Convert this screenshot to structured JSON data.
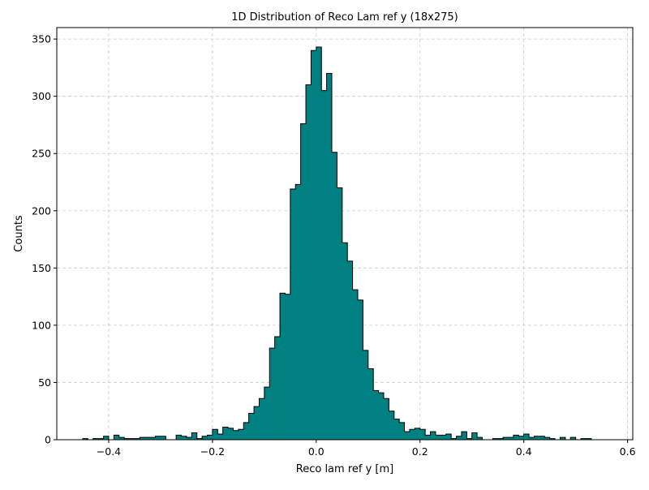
{
  "chart_data": {
    "type": "bar",
    "title": "1D Distribution of Reco Lam ref y (18x275)",
    "xlabel": "Reco lam ref y [m]",
    "ylabel": "Counts",
    "xlim": [
      -0.5,
      0.61
    ],
    "ylim": [
      0,
      360
    ],
    "xticks": [
      -0.4,
      -0.2,
      0.0,
      0.2,
      0.4,
      0.6
    ],
    "xtick_labels": [
      "−0.4",
      "−0.2",
      "0.0",
      "0.2",
      "0.4",
      "0.6"
    ],
    "yticks": [
      0,
      50,
      100,
      150,
      200,
      250,
      300,
      350
    ],
    "ytick_labels": [
      "0",
      "50",
      "100",
      "150",
      "200",
      "250",
      "300",
      "350"
    ],
    "grid": true,
    "colors": {
      "fill": "#008080",
      "edge": "#000000",
      "grid": "#cccccc"
    },
    "bin_start": -0.45,
    "bin_width": 0.01,
    "counts": [
      1,
      0,
      1,
      1,
      3,
      0,
      4,
      2,
      1,
      1,
      1,
      2,
      2,
      2,
      3,
      3,
      0,
      0,
      4,
      3,
      2,
      6,
      1,
      3,
      4,
      9,
      5,
      11,
      10,
      8,
      9,
      15,
      23,
      29,
      36,
      46,
      80,
      90,
      128,
      127,
      219,
      223,
      276,
      310,
      340,
      343,
      305,
      320,
      251,
      220,
      172,
      156,
      131,
      122,
      78,
      62,
      43,
      41,
      36,
      25,
      18,
      15,
      7,
      9,
      10,
      9,
      4,
      7,
      4,
      4,
      5,
      1,
      3,
      7,
      1,
      6,
      2,
      0,
      0,
      1,
      1,
      2,
      2,
      4,
      3,
      5,
      2,
      3,
      3,
      2,
      1,
      0,
      2,
      0,
      2,
      0,
      1,
      1,
      0,
      0,
      0
    ]
  }
}
